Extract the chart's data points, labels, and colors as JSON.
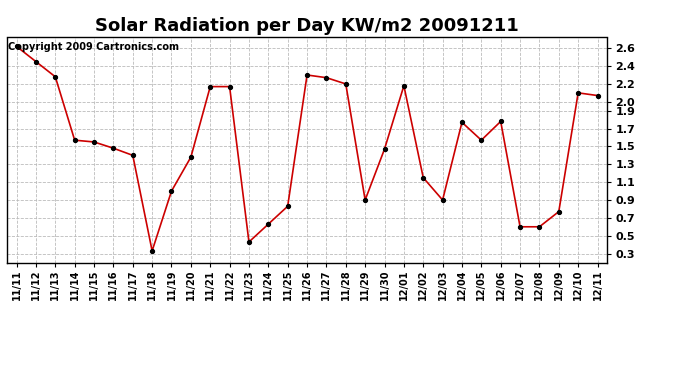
{
  "title": "Solar Radiation per Day KW/m2 20091211",
  "copyright": "Copyright 2009 Cartronics.com",
  "dates": [
    "11/11",
    "11/12",
    "11/13",
    "11/14",
    "11/15",
    "11/16",
    "11/17",
    "11/18",
    "11/19",
    "11/20",
    "11/21",
    "11/22",
    "11/23",
    "11/24",
    "11/25",
    "11/26",
    "11/27",
    "11/28",
    "11/29",
    "11/30",
    "12/01",
    "12/02",
    "12/03",
    "12/04",
    "12/05",
    "12/06",
    "12/07",
    "12/08",
    "12/09",
    "12/10",
    "12/11"
  ],
  "values": [
    2.62,
    2.45,
    2.28,
    1.57,
    1.55,
    1.48,
    1.4,
    0.33,
    1.0,
    1.38,
    2.17,
    2.17,
    0.43,
    0.63,
    0.83,
    2.3,
    2.27,
    2.2,
    0.9,
    1.47,
    2.18,
    1.15,
    0.9,
    1.77,
    1.57,
    1.78,
    0.6,
    0.6,
    0.77,
    2.1,
    2.07
  ],
  "line_color": "#cc0000",
  "marker_color": "#000000",
  "bg_color": "#ffffff",
  "grid_color": "#bbbbbb",
  "ylim": [
    0.2,
    2.72
  ],
  "yticks": [
    0.3,
    0.5,
    0.7,
    0.9,
    1.1,
    1.3,
    1.5,
    1.7,
    1.9,
    2.0,
    2.2,
    2.4,
    2.6
  ],
  "ytick_labels": [
    "0.3",
    "0.5",
    "0.7",
    "0.9",
    "1.1",
    "1.3",
    "1.5",
    "1.7",
    "1.9",
    "2.0",
    "2.2",
    "2.4",
    "2.6"
  ],
  "title_fontsize": 13,
  "tick_fontsize": 7,
  "copyright_fontsize": 7
}
